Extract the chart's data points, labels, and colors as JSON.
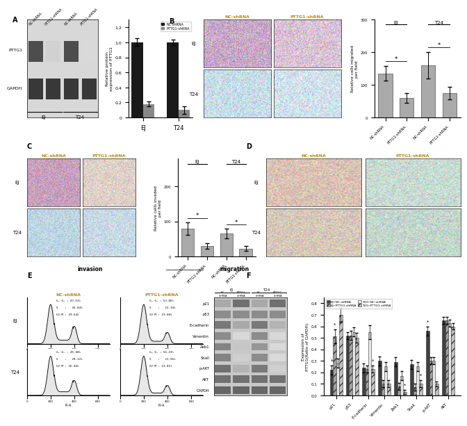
{
  "panel_A_bar": {
    "groups": [
      "EJ",
      "T24"
    ],
    "NC_values": [
      1.0,
      1.0
    ],
    "PTTG1_values": [
      0.18,
      0.1
    ],
    "NC_errors": [
      0.05,
      0.04
    ],
    "PTTG1_errors": [
      0.03,
      0.05
    ],
    "ylabel": "Relative protein\nexpression of PTTG1",
    "ylim": [
      0,
      1.3
    ],
    "yticks": [
      0.0,
      0.2,
      0.4,
      0.6,
      0.8,
      1.0,
      1.2
    ],
    "NC_color": "#1a1a1a",
    "PTTG1_color": "#888888",
    "legend_NC": "NC-shRNA",
    "legend_PTTG1": "PTTG1-shRNA"
  },
  "panel_B_bar": {
    "values": [
      135,
      60,
      160,
      75
    ],
    "errors": [
      22,
      15,
      40,
      20
    ],
    "ylabel": "Relative cells migrated\nper field",
    "ylim": [
      0,
      300
    ],
    "color": "#aaaaaa"
  },
  "panel_C_bar": {
    "values": [
      80,
      30,
      65,
      22
    ],
    "errors": [
      18,
      8,
      14,
      7
    ],
    "ylabel": "Relative cells invaded\nper field",
    "ylim": [
      0,
      280
    ],
    "color": "#aaaaaa"
  },
  "panel_F_bar": {
    "proteins": [
      "p21",
      "p53",
      "E-cadherin",
      "Vimentin",
      "Zeb1",
      "Snail",
      "p-AKT",
      "AKT"
    ],
    "EJ_NC": [
      0.22,
      0.52,
      0.24,
      0.3,
      0.29,
      0.27,
      0.56,
      0.65
    ],
    "EJ_PTTG1": [
      0.51,
      0.52,
      0.23,
      0.1,
      0.08,
      0.07,
      0.3,
      0.65
    ],
    "T24_NC": [
      0.28,
      0.55,
      0.55,
      0.25,
      0.17,
      0.25,
      0.3,
      0.63
    ],
    "T24_PTTG1": [
      0.7,
      0.5,
      0.23,
      0.1,
      0.03,
      0.1,
      0.1,
      0.6
    ],
    "EJ_NC_errors": [
      0.04,
      0.03,
      0.04,
      0.04,
      0.04,
      0.04,
      0.04,
      0.03
    ],
    "EJ_PTTG1_errors": [
      0.06,
      0.04,
      0.03,
      0.03,
      0.03,
      0.03,
      0.03,
      0.03
    ],
    "T24_NC_errors": [
      0.04,
      0.04,
      0.06,
      0.04,
      0.04,
      0.04,
      0.03,
      0.03
    ],
    "T24_PTTG1_errors": [
      0.06,
      0.04,
      0.03,
      0.03,
      0.02,
      0.03,
      0.02,
      0.03
    ],
    "ylabel": "Expression of\nPTTG1(Ratio of GAPDH)",
    "ylim": [
      0,
      0.85
    ],
    "yticks": [
      0.0,
      0.1,
      0.2,
      0.3,
      0.4,
      0.5,
      0.6,
      0.7,
      0.8
    ],
    "colors": [
      "#404040",
      "#a0a0a0",
      "#e8e8e8",
      "#c0c0c0"
    ],
    "legend": [
      "EJ+NC-shRNA",
      "EJ+PTTG1-shRNA",
      "T24+NC-shRNA",
      "T24+PTTG1-shRNA"
    ]
  },
  "flow_EJ_NC": {
    "G1": 43.52,
    "S": 26.84,
    "G2M": 29.64
  },
  "flow_EJ_PTTG1": {
    "G1": 53.86,
    "S": 22.34,
    "G2M": 23.8
  },
  "flow_T24_NC": {
    "G1": 45.4,
    "S": 28.12,
    "G2M": 26.48
  },
  "flow_T24_PTTG1": {
    "G1": 56.23,
    "S": 21.96,
    "G2M": 21.81
  },
  "bg_color": "#ffffff",
  "panel_label_color": "#000000",
  "col_label_color": "#b8860b",
  "row_label_color": "#000000"
}
